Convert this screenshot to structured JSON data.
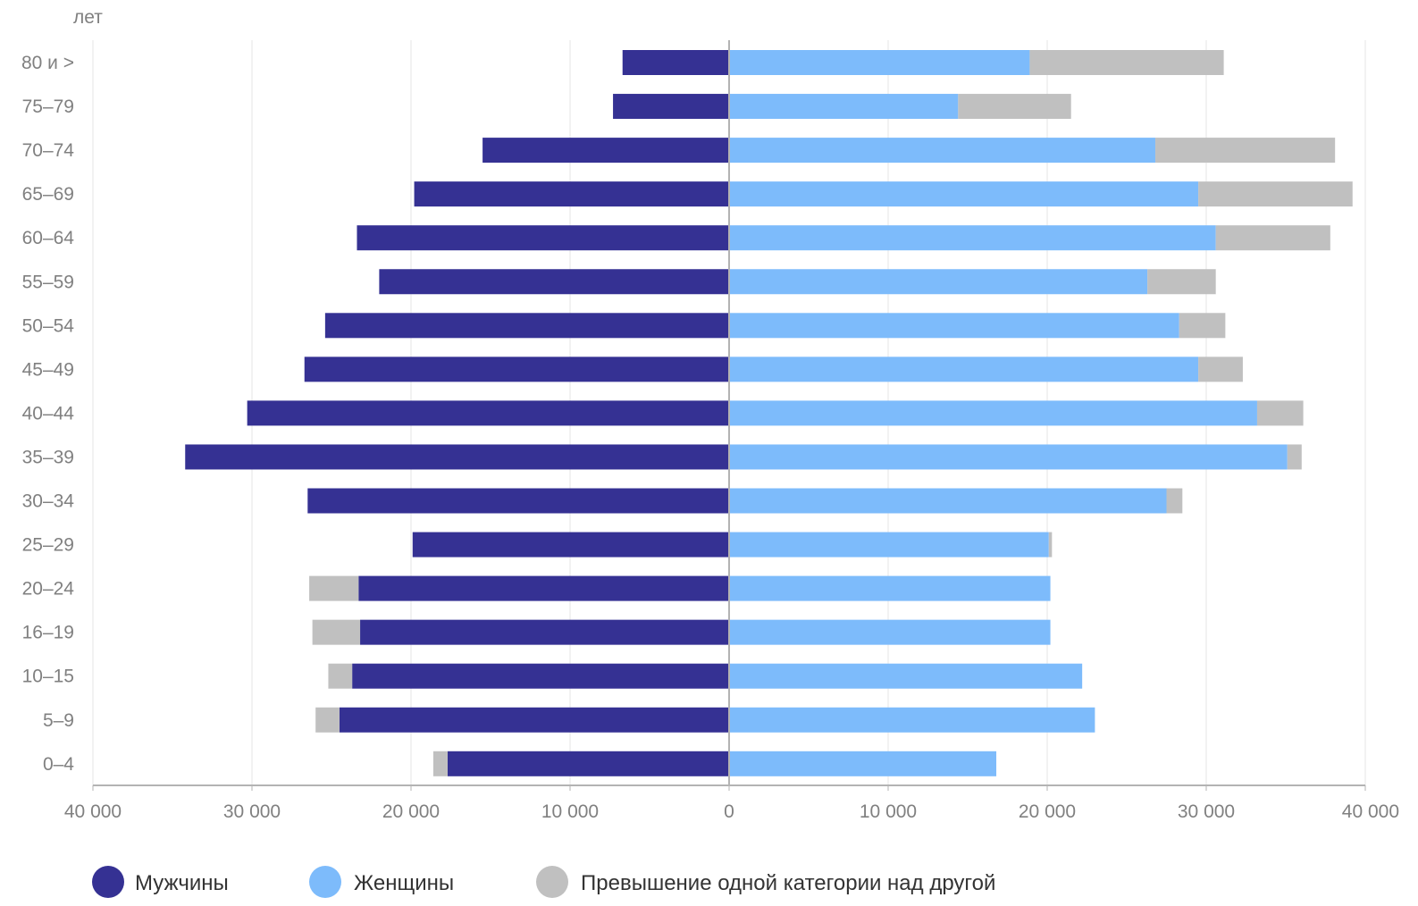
{
  "chart_data": {
    "type": "bar",
    "orientation": "horizontal",
    "subtype": "population-pyramid",
    "y_unit_label": "лет",
    "categories": [
      "80 и >",
      "75–79",
      "70–74",
      "65–69",
      "60–64",
      "55–59",
      "50–54",
      "45–49",
      "40–44",
      "35–39",
      "30–34",
      "25–29",
      "20–24",
      "16–19",
      "10–15",
      "5–9",
      "0–4"
    ],
    "series": [
      {
        "name": "Мужчины",
        "key": "male",
        "color": "#353193",
        "side": "left",
        "values": [
          6700,
          7300,
          15500,
          19800,
          23400,
          22000,
          25400,
          26700,
          30300,
          34200,
          26500,
          19900,
          23300,
          23200,
          23700,
          24500,
          17700
        ]
      },
      {
        "name": "Женщины",
        "key": "female",
        "color": "#7dbbfb",
        "side": "right",
        "values": [
          18900,
          14400,
          26800,
          29500,
          30600,
          26300,
          28300,
          29500,
          33200,
          35100,
          27500,
          20100,
          20200,
          20200,
          22200,
          23000,
          16800
        ]
      }
    ],
    "excess": {
      "name": "Превышение одной категории над другой",
      "color": "#c0c0c0"
    },
    "xlim": [
      -40000,
      40000
    ],
    "x_ticks": [
      -40000,
      -30000,
      -20000,
      -10000,
      0,
      10000,
      20000,
      30000,
      40000
    ],
    "x_tick_labels": [
      "40 000",
      "30 000",
      "20 000",
      "10 000",
      "0",
      "10 000",
      "20 000",
      "30 000",
      "40 000"
    ],
    "grid": true,
    "legend_position": "bottom-left"
  }
}
